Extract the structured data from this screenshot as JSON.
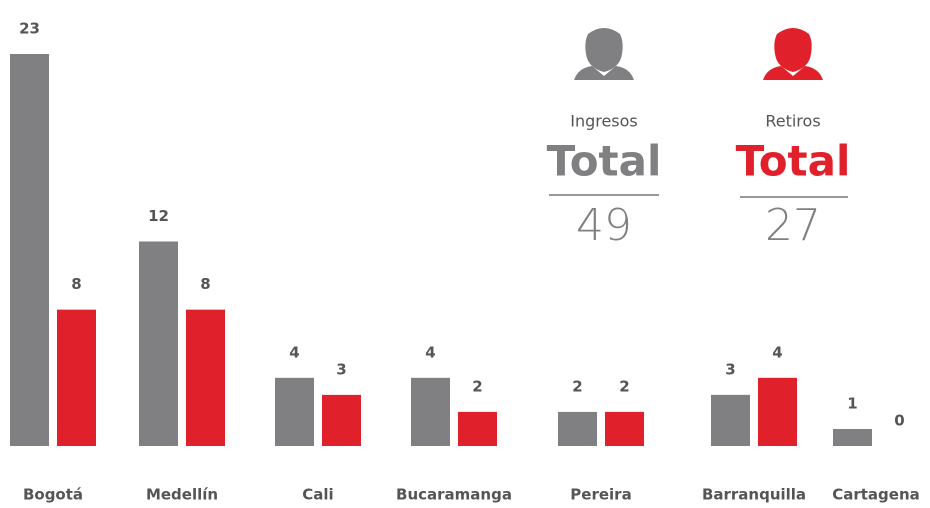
{
  "chart_data": {
    "type": "bar",
    "categories": [
      "Bogotá",
      "Medellín",
      "Cali",
      "Bucaramanga",
      "Pereira",
      "Barranquilla",
      "Cartagena"
    ],
    "series": [
      {
        "name": "Ingresos",
        "color": "#808083",
        "values": [
          23,
          12,
          4,
          4,
          2,
          3,
          1
        ]
      },
      {
        "name": "Retiros",
        "color": "#e0202a",
        "values": [
          8,
          8,
          3,
          2,
          2,
          4,
          0
        ]
      }
    ],
    "totals": [
      {
        "label": "Total",
        "value": 49
      },
      {
        "label": "Total",
        "value": 27
      }
    ]
  }
}
